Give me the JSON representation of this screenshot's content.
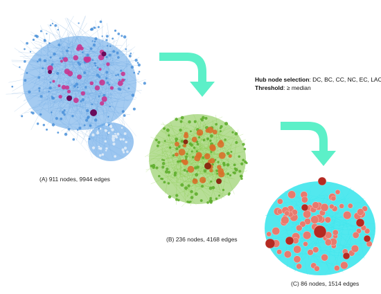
{
  "colors": {
    "network_a_edges": "#8fb8e0",
    "network_a_fill": "#5aa0e6",
    "network_a_nodes": "#4a90d9",
    "network_a_hub": "#c8358f",
    "network_a_dark": "#6a0a5a",
    "network_b_edges": "#9ad65a",
    "network_b_fill": "#7cc242",
    "network_b_nodes": "#5fae2d",
    "network_b_hub": "#d9702a",
    "network_b_dark": "#8a2a12",
    "network_c_edges": "#33e0e6",
    "network_c_fill": "#3fe6ec",
    "network_c_node": "#e87a6e",
    "network_c_hub": "#b52a22",
    "arrow": "#5cf0c8"
  },
  "stages": [
    {
      "id": "A",
      "caption": "(A) 911 nodes, 9944 edges"
    },
    {
      "id": "B",
      "caption": "(B) 236 nodes, 4168 edges"
    },
    {
      "id": "C",
      "caption": "(C) 86 nodes, 1514 edges"
    }
  ],
  "info": {
    "hub_label": "Hub node selection",
    "hub_value": ": DC, BC, CC, NC, EC, LAC",
    "threshold_label": "Threshold",
    "threshold_value": ": ≥ median"
  }
}
